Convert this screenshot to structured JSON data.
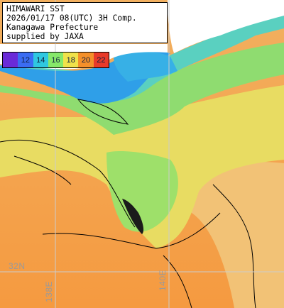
{
  "caption": {
    "lines": [
      "HIMAWARI SST",
      "2026/01/17 08(UTC) 3H Comp.",
      "Kanagawa Prefecture",
      "supplied by JAXA"
    ]
  },
  "legend": {
    "ticks": [
      "12",
      "14",
      "16",
      "18",
      "20",
      "22"
    ],
    "colors": [
      "#6a2bd8",
      "#3b6cf2",
      "#2fc8e0",
      "#86e86a",
      "#f0e24a",
      "#f4902a",
      "#e83a2a"
    ]
  },
  "grid_labels": {
    "latitude": "32N",
    "longitude_a": "138E",
    "longitude_b": "140E"
  },
  "colors": {
    "land": "#ffffff",
    "cold_water": "#2f9fe8",
    "cool_water": "#4cc7d2",
    "mild_water": "#7fe08a",
    "warm_water": "#e6dd6a",
    "hot_water": "#f2a45a",
    "contour": "#000000",
    "grid": "#cccccc"
  }
}
